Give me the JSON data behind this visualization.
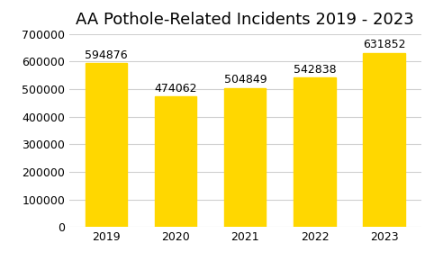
{
  "title": "AA Pothole-Related Incidents 2019 - 2023",
  "categories": [
    "2019",
    "2020",
    "2021",
    "2022",
    "2023"
  ],
  "values": [
    594876,
    474062,
    504849,
    542838,
    631852
  ],
  "bar_color": "#FFD700",
  "background_color": "#FFFFFF",
  "ylim": [
    0,
    700000
  ],
  "yticks": [
    0,
    100000,
    200000,
    300000,
    400000,
    500000,
    600000,
    700000
  ],
  "title_fontsize": 13,
  "tick_fontsize": 9,
  "label_fontsize": 9
}
